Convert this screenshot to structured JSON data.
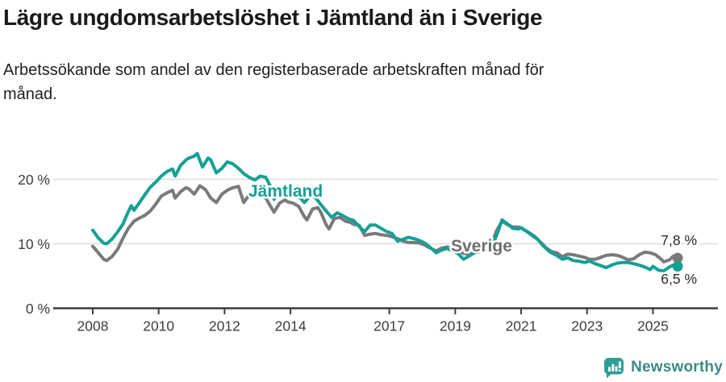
{
  "title": "Lägre ungdomsarbetslöshet i Jämtland än i Sverige",
  "subtitle": "Arbetssökande som andel av den registerbaserade arbetskraften månad för månad.",
  "footer": {
    "logo_text": "Newsworthy"
  },
  "colors": {
    "jamtland": "#13a097",
    "sverige": "#7a7a7a",
    "sverige_label": "#6e6e6e",
    "grid": "#dcdcdc",
    "axis": "#3d3d3d",
    "tick_text": "#3d3d3d",
    "value_label_text": "#2b2b2b",
    "logo_icon": "#2f9e98",
    "logo_text": "#3a8b87"
  },
  "chart_data": {
    "type": "line",
    "title": "Lägre ungdomsarbetslöshet i Jämtland än i Sverige",
    "subtitle": "Arbetssökande som andel av den registerbaserade arbetskraften månad för månad.",
    "xlabel": "",
    "ylabel": "",
    "x_unit": "decimal year (monthly observations)",
    "xlim": [
      2007.9,
      2026.0
    ],
    "ylim": [
      0,
      26
    ],
    "grid": "horizontal only",
    "legend_position": "inline series labels",
    "yticks": [
      {
        "value": 0,
        "label": "0 %"
      },
      {
        "value": 10,
        "label": "10 %"
      },
      {
        "value": 20,
        "label": "20 %"
      }
    ],
    "xticks": [
      {
        "value": 2008,
        "label": "2008"
      },
      {
        "value": 2010,
        "label": "2010"
      },
      {
        "value": 2012,
        "label": "2012"
      },
      {
        "value": 2014,
        "label": "2014"
      },
      {
        "value": 2017,
        "label": "2017"
      },
      {
        "value": 2019,
        "label": "2019"
      },
      {
        "value": 2021,
        "label": "2021"
      },
      {
        "value": 2023,
        "label": "2023"
      },
      {
        "value": 2025,
        "label": "2025"
      }
    ],
    "series": [
      {
        "name": "Sverige",
        "color": "#7a7a7a",
        "label_color": "#6e6e6e",
        "end_label": "7,8 %",
        "end_value": 7.8,
        "points": [
          [
            2008.0,
            9.6
          ],
          [
            2008.17,
            8.6
          ],
          [
            2008.33,
            7.6
          ],
          [
            2008.42,
            7.4
          ],
          [
            2008.58,
            8.0
          ],
          [
            2008.75,
            9.1
          ],
          [
            2008.92,
            10.9
          ],
          [
            2009.08,
            12.4
          ],
          [
            2009.25,
            13.5
          ],
          [
            2009.42,
            14.0
          ],
          [
            2009.58,
            14.4
          ],
          [
            2009.75,
            15.1
          ],
          [
            2009.92,
            16.2
          ],
          [
            2010.08,
            17.4
          ],
          [
            2010.25,
            17.9
          ],
          [
            2010.42,
            18.3
          ],
          [
            2010.5,
            17.1
          ],
          [
            2010.67,
            18.1
          ],
          [
            2010.83,
            18.7
          ],
          [
            2010.92,
            18.5
          ],
          [
            2011.08,
            17.7
          ],
          [
            2011.25,
            19.0
          ],
          [
            2011.42,
            18.4
          ],
          [
            2011.58,
            17.1
          ],
          [
            2011.75,
            16.4
          ],
          [
            2011.92,
            17.7
          ],
          [
            2012.08,
            18.3
          ],
          [
            2012.25,
            18.7
          ],
          [
            2012.42,
            18.9
          ],
          [
            2012.58,
            16.4
          ],
          [
            2012.75,
            17.6
          ],
          [
            2012.92,
            18.1
          ],
          [
            2013.08,
            17.9
          ],
          [
            2013.25,
            17.1
          ],
          [
            2013.42,
            15.6
          ],
          [
            2013.5,
            14.9
          ],
          [
            2013.67,
            16.3
          ],
          [
            2013.83,
            16.8
          ],
          [
            2013.92,
            16.5
          ],
          [
            2014.08,
            16.3
          ],
          [
            2014.25,
            15.8
          ],
          [
            2014.42,
            14.2
          ],
          [
            2014.5,
            13.7
          ],
          [
            2014.67,
            15.4
          ],
          [
            2014.83,
            15.6
          ],
          [
            2014.92,
            14.9
          ],
          [
            2015.08,
            13.0
          ],
          [
            2015.17,
            12.3
          ],
          [
            2015.33,
            13.9
          ],
          [
            2015.5,
            14.1
          ],
          [
            2015.67,
            13.5
          ],
          [
            2015.83,
            13.3
          ],
          [
            2015.92,
            13.0
          ],
          [
            2016.08,
            12.9
          ],
          [
            2016.25,
            11.3
          ],
          [
            2016.42,
            11.5
          ],
          [
            2016.58,
            11.6
          ],
          [
            2016.75,
            11.4
          ],
          [
            2016.92,
            11.3
          ],
          [
            2017.08,
            11.1
          ],
          [
            2017.25,
            10.8
          ],
          [
            2017.42,
            10.4
          ],
          [
            2017.58,
            10.2
          ],
          [
            2017.75,
            10.2
          ],
          [
            2017.92,
            10.1
          ],
          [
            2018.08,
            9.8
          ],
          [
            2018.25,
            9.3
          ],
          [
            2018.42,
            8.9
          ],
          [
            2018.58,
            9.3
          ],
          [
            2018.75,
            9.5
          ],
          [
            2018.92,
            9.3
          ],
          [
            2019.08,
            9.0
          ],
          [
            2019.25,
            8.5
          ],
          [
            2019.42,
            8.4
          ],
          [
            2019.58,
            8.6
          ],
          [
            2019.75,
            8.8
          ],
          [
            2019.92,
            9.0
          ],
          [
            2020.08,
            9.6
          ],
          [
            2020.25,
            12.0
          ],
          [
            2020.42,
            13.5
          ],
          [
            2020.58,
            13.0
          ],
          [
            2020.75,
            12.6
          ],
          [
            2020.92,
            12.6
          ],
          [
            2021.08,
            12.2
          ],
          [
            2021.25,
            11.7
          ],
          [
            2021.42,
            11.1
          ],
          [
            2021.58,
            10.3
          ],
          [
            2021.75,
            9.4
          ],
          [
            2021.92,
            8.8
          ],
          [
            2022.08,
            8.6
          ],
          [
            2022.25,
            8.0
          ],
          [
            2022.42,
            8.4
          ],
          [
            2022.58,
            8.3
          ],
          [
            2022.75,
            8.1
          ],
          [
            2022.92,
            7.9
          ],
          [
            2023.08,
            7.6
          ],
          [
            2023.25,
            7.6
          ],
          [
            2023.42,
            7.9
          ],
          [
            2023.58,
            8.2
          ],
          [
            2023.75,
            8.3
          ],
          [
            2023.92,
            8.2
          ],
          [
            2024.08,
            7.9
          ],
          [
            2024.25,
            7.5
          ],
          [
            2024.42,
            7.7
          ],
          [
            2024.58,
            8.3
          ],
          [
            2024.75,
            8.7
          ],
          [
            2024.92,
            8.6
          ],
          [
            2025.08,
            8.3
          ],
          [
            2025.25,
            7.6
          ],
          [
            2025.33,
            7.2
          ],
          [
            2025.5,
            7.5
          ],
          [
            2025.62,
            8.1
          ],
          [
            2025.75,
            7.8
          ]
        ]
      },
      {
        "name": "Jämtland",
        "color": "#13a097",
        "label_color": "#13a097",
        "end_label": "6,5 %",
        "end_value": 6.5,
        "points": [
          [
            2008.0,
            12.1
          ],
          [
            2008.17,
            10.9
          ],
          [
            2008.33,
            10.1
          ],
          [
            2008.42,
            10.0
          ],
          [
            2008.58,
            10.7
          ],
          [
            2008.75,
            11.8
          ],
          [
            2008.92,
            13.1
          ],
          [
            2009.08,
            15.0
          ],
          [
            2009.17,
            15.9
          ],
          [
            2009.25,
            15.2
          ],
          [
            2009.42,
            16.4
          ],
          [
            2009.58,
            17.6
          ],
          [
            2009.75,
            18.8
          ],
          [
            2009.92,
            19.6
          ],
          [
            2010.08,
            20.5
          ],
          [
            2010.25,
            21.2
          ],
          [
            2010.42,
            21.6
          ],
          [
            2010.5,
            20.5
          ],
          [
            2010.67,
            22.2
          ],
          [
            2010.83,
            23.0
          ],
          [
            2010.92,
            23.3
          ],
          [
            2011.08,
            23.6
          ],
          [
            2011.17,
            24.0
          ],
          [
            2011.33,
            21.9
          ],
          [
            2011.5,
            23.3
          ],
          [
            2011.58,
            23.0
          ],
          [
            2011.75,
            21.0
          ],
          [
            2011.92,
            21.7
          ],
          [
            2012.08,
            22.7
          ],
          [
            2012.25,
            22.4
          ],
          [
            2012.42,
            21.7
          ],
          [
            2012.58,
            20.9
          ],
          [
            2012.75,
            20.3
          ],
          [
            2012.92,
            19.9
          ],
          [
            2013.08,
            20.5
          ],
          [
            2013.25,
            20.3
          ],
          [
            2013.42,
            18.6
          ],
          [
            2013.5,
            16.9
          ],
          [
            2013.67,
            18.0
          ],
          [
            2013.83,
            17.4
          ],
          [
            2014.0,
            17.6
          ],
          [
            2014.25,
            17.4
          ],
          [
            2014.42,
            16.4
          ],
          [
            2014.58,
            17.3
          ],
          [
            2014.75,
            17.2
          ],
          [
            2014.92,
            16.1
          ],
          [
            2015.08,
            15.1
          ],
          [
            2015.25,
            14.1
          ],
          [
            2015.42,
            14.8
          ],
          [
            2015.58,
            14.4
          ],
          [
            2015.75,
            13.9
          ],
          [
            2015.92,
            13.6
          ],
          [
            2016.08,
            12.7
          ],
          [
            2016.25,
            11.9
          ],
          [
            2016.42,
            12.9
          ],
          [
            2016.58,
            12.9
          ],
          [
            2016.75,
            12.4
          ],
          [
            2016.92,
            11.9
          ],
          [
            2017.08,
            11.6
          ],
          [
            2017.25,
            10.4
          ],
          [
            2017.42,
            10.7
          ],
          [
            2017.58,
            11.0
          ],
          [
            2017.75,
            10.8
          ],
          [
            2017.92,
            10.5
          ],
          [
            2018.08,
            10.1
          ],
          [
            2018.25,
            9.4
          ],
          [
            2018.42,
            8.6
          ],
          [
            2018.58,
            9.0
          ],
          [
            2018.75,
            9.3
          ],
          [
            2018.92,
            8.9
          ],
          [
            2019.08,
            8.5
          ],
          [
            2019.25,
            7.6
          ],
          [
            2019.42,
            8.1
          ],
          [
            2019.58,
            8.6
          ],
          [
            2019.75,
            8.8
          ],
          [
            2019.92,
            9.0
          ],
          [
            2020.08,
            9.5
          ],
          [
            2020.25,
            11.2
          ],
          [
            2020.42,
            13.7
          ],
          [
            2020.58,
            13.1
          ],
          [
            2020.75,
            12.4
          ],
          [
            2020.92,
            12.3
          ],
          [
            2021.0,
            12.5
          ],
          [
            2021.17,
            11.9
          ],
          [
            2021.33,
            11.3
          ],
          [
            2021.5,
            10.7
          ],
          [
            2021.67,
            9.7
          ],
          [
            2021.83,
            8.9
          ],
          [
            2021.92,
            8.6
          ],
          [
            2022.08,
            8.2
          ],
          [
            2022.25,
            7.6
          ],
          [
            2022.42,
            7.8
          ],
          [
            2022.58,
            7.4
          ],
          [
            2022.75,
            7.3
          ],
          [
            2022.92,
            7.1
          ],
          [
            2023.08,
            7.3
          ],
          [
            2023.25,
            6.9
          ],
          [
            2023.42,
            6.6
          ],
          [
            2023.58,
            6.3
          ],
          [
            2023.75,
            6.7
          ],
          [
            2023.92,
            7.0
          ],
          [
            2024.08,
            7.1
          ],
          [
            2024.25,
            7.1
          ],
          [
            2024.42,
            6.9
          ],
          [
            2024.58,
            6.7
          ],
          [
            2024.75,
            6.4
          ],
          [
            2024.92,
            6.0
          ],
          [
            2025.0,
            6.5
          ],
          [
            2025.17,
            5.9
          ],
          [
            2025.33,
            5.8
          ],
          [
            2025.5,
            6.4
          ],
          [
            2025.62,
            6.7
          ],
          [
            2025.75,
            6.5
          ]
        ]
      }
    ]
  }
}
